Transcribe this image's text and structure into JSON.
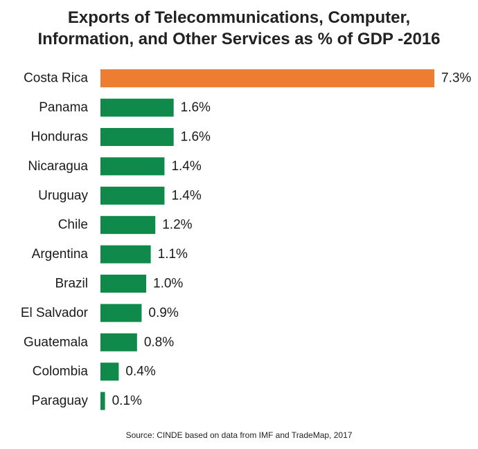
{
  "chart_data": {
    "type": "bar",
    "orientation": "horizontal",
    "title_lines": [
      "Exports of Telecommunications, Computer,",
      "Information, and Other Services as % of GDP -2016"
    ],
    "categories": [
      "Costa Rica",
      "Panama",
      "Honduras",
      "Nicaragua",
      "Uruguay",
      "Chile",
      "Argentina",
      "Brazil",
      "El Salvador",
      "Guatemala",
      "Colombia",
      "Paraguay"
    ],
    "values": [
      7.3,
      1.6,
      1.6,
      1.4,
      1.4,
      1.2,
      1.1,
      1.0,
      0.9,
      0.8,
      0.4,
      0.1
    ],
    "value_labels": [
      "7.3%",
      "1.6%",
      "1.6%",
      "1.4%",
      "1.4%",
      "1.2%",
      "1.1%",
      "1.0%",
      "0.9%",
      "0.8%",
      "0.4%",
      "0.1%"
    ],
    "highlight_category": "Costa Rica",
    "colors": {
      "highlight": "#ED7D31",
      "default": "#0F8A4A"
    },
    "xlim": [
      0,
      7.3
    ],
    "source": "Source: CINDE based on data from IMF and TradeMap, 2017"
  }
}
